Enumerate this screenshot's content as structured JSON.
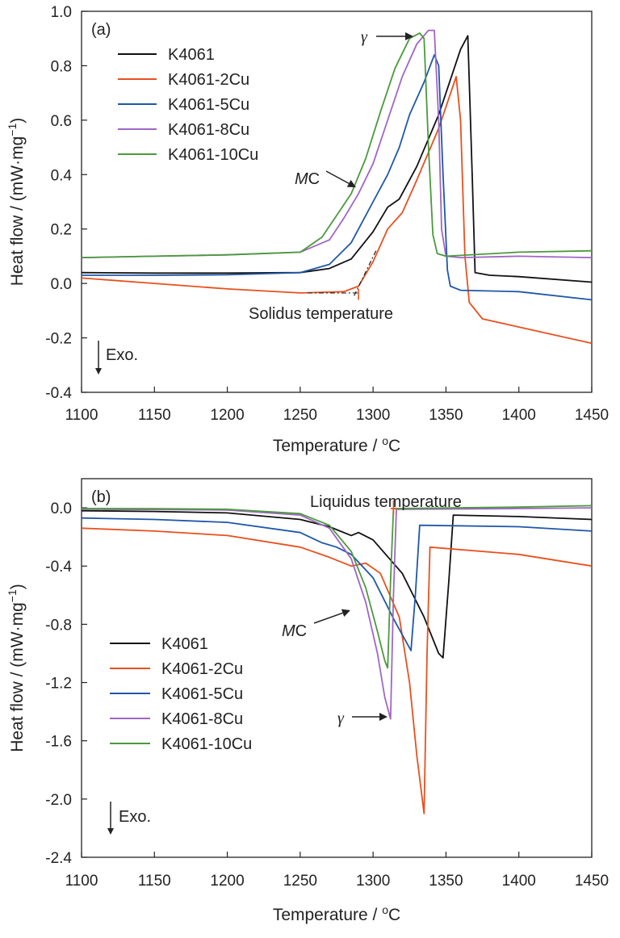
{
  "chart_data": [
    {
      "type": "line",
      "panel_label": "(a)",
      "xlabel_text": "Temperature / ",
      "xlabel_unit": "oC",
      "ylabel_text": "Heat flow / (mW·mg",
      "ylabel_sup": "−1",
      "ylabel_close": ")",
      "xlim": [
        1100,
        1450
      ],
      "ylim": [
        -0.4,
        1.0
      ],
      "x_ticks": [
        1100,
        1150,
        1200,
        1250,
        1300,
        1350,
        1400,
        1450
      ],
      "y_ticks": [
        -0.4,
        -0.2,
        0.0,
        0.2,
        0.4,
        0.6,
        0.8,
        1.0
      ],
      "y_tick_labels": [
        "-0.4",
        "-0.2",
        "0.0",
        "0.2",
        "0.4",
        "0.6",
        "0.8",
        "1.0"
      ],
      "exo_label": "Exo.",
      "legend_placement": "upper-left",
      "annotations": {
        "gamma": "γ",
        "mc_italic": "M",
        "mc_rest": "C",
        "solidus": "Solidus temperature"
      },
      "series": [
        {
          "name": "K4061",
          "color": "#111111",
          "x": [
            1100,
            1150,
            1200,
            1250,
            1270,
            1285,
            1300,
            1310,
            1318,
            1330,
            1345,
            1360,
            1365,
            1368,
            1370,
            1380,
            1400,
            1450
          ],
          "y": [
            0.04,
            0.038,
            0.038,
            0.04,
            0.055,
            0.09,
            0.19,
            0.28,
            0.31,
            0.43,
            0.62,
            0.86,
            0.91,
            0.4,
            0.04,
            0.03,
            0.025,
            0.005
          ]
        },
        {
          "name": "K4061-2Cu",
          "color": "#e8501e",
          "x": [
            1100,
            1150,
            1200,
            1250,
            1280,
            1290,
            1300,
            1310,
            1320,
            1330,
            1345,
            1357,
            1360,
            1363,
            1366,
            1375,
            1400,
            1450
          ],
          "y": [
            0.02,
            0.0,
            -0.02,
            -0.035,
            -0.03,
            -0.01,
            0.08,
            0.2,
            0.26,
            0.38,
            0.57,
            0.76,
            0.6,
            0.1,
            -0.07,
            -0.13,
            -0.16,
            -0.22
          ]
        },
        {
          "name": "K4061-5Cu",
          "color": "#1f57a8",
          "x": [
            1100,
            1150,
            1200,
            1250,
            1270,
            1285,
            1300,
            1310,
            1318,
            1325,
            1335,
            1342,
            1345,
            1348,
            1351,
            1353,
            1360,
            1400,
            1450
          ],
          "y": [
            0.03,
            0.03,
            0.032,
            0.04,
            0.07,
            0.15,
            0.3,
            0.4,
            0.5,
            0.62,
            0.74,
            0.84,
            0.8,
            0.4,
            0.05,
            -0.01,
            -0.025,
            -0.03,
            -0.06
          ]
        },
        {
          "name": "K4061-8Cu",
          "color": "#a066c4",
          "x": [
            1100,
            1150,
            1200,
            1250,
            1270,
            1280,
            1290,
            1300,
            1310,
            1320,
            1330,
            1338,
            1342,
            1345,
            1347,
            1350,
            1360,
            1400,
            1450
          ],
          "y": [
            0.095,
            0.1,
            0.105,
            0.115,
            0.16,
            0.24,
            0.33,
            0.44,
            0.6,
            0.76,
            0.88,
            0.93,
            0.93,
            0.6,
            0.2,
            0.1,
            0.095,
            0.1,
            0.095
          ]
        },
        {
          "name": "K4061-10Cu",
          "color": "#4b9a3c",
          "x": [
            1100,
            1150,
            1200,
            1250,
            1265,
            1275,
            1285,
            1295,
            1305,
            1315,
            1325,
            1332,
            1335,
            1338,
            1341,
            1344,
            1350,
            1400,
            1450
          ],
          "y": [
            0.095,
            0.1,
            0.105,
            0.115,
            0.17,
            0.25,
            0.33,
            0.46,
            0.63,
            0.79,
            0.9,
            0.92,
            0.9,
            0.5,
            0.18,
            0.11,
            0.1,
            0.115,
            0.12
          ]
        }
      ]
    },
    {
      "type": "line",
      "panel_label": "(b)",
      "xlabel_text": "Temperature / ",
      "xlabel_unit": "oC",
      "ylabel_text": "Heat flow / (mW·mg",
      "ylabel_sup": "−1",
      "ylabel_close": ")",
      "xlim": [
        1100,
        1450
      ],
      "ylim": [
        -2.4,
        0.2
      ],
      "x_ticks": [
        1100,
        1150,
        1200,
        1250,
        1300,
        1350,
        1400,
        1450
      ],
      "y_ticks": [
        -2.4,
        -2.0,
        -1.6,
        -1.2,
        -0.8,
        -0.4,
        0.0
      ],
      "y_tick_labels": [
        "-2.4",
        "-2.0",
        "-1.6",
        "-1.2",
        "-0.8",
        "-0.4",
        "0.0"
      ],
      "exo_label": "Exo.",
      "legend_placement": "middle-left",
      "annotations": {
        "gamma": "γ",
        "mc_italic": "M",
        "mc_rest": "C",
        "liquidus": "Liquidus temperature"
      },
      "series": [
        {
          "name": "K4061",
          "color": "#111111",
          "x": [
            1100,
            1150,
            1200,
            1250,
            1270,
            1285,
            1290,
            1300,
            1320,
            1335,
            1345,
            1348,
            1352,
            1355,
            1400,
            1450
          ],
          "y": [
            -0.02,
            -0.025,
            -0.035,
            -0.08,
            -0.13,
            -0.19,
            -0.17,
            -0.22,
            -0.45,
            -0.75,
            -1.0,
            -1.03,
            -0.5,
            -0.05,
            -0.06,
            -0.08
          ]
        },
        {
          "name": "K4061-2Cu",
          "color": "#e8501e",
          "x": [
            1100,
            1150,
            1200,
            1250,
            1270,
            1285,
            1295,
            1305,
            1318,
            1325,
            1330,
            1335,
            1337,
            1339,
            1400,
            1450
          ],
          "y": [
            -0.14,
            -0.16,
            -0.19,
            -0.27,
            -0.34,
            -0.4,
            -0.38,
            -0.45,
            -0.75,
            -1.2,
            -1.7,
            -2.1,
            -1.0,
            -0.27,
            -0.32,
            -0.4
          ]
        },
        {
          "name": "K4061-5Cu",
          "color": "#1f57a8",
          "x": [
            1100,
            1150,
            1200,
            1250,
            1265,
            1275,
            1285,
            1300,
            1315,
            1326,
            1329,
            1332,
            1400,
            1450
          ],
          "y": [
            -0.07,
            -0.08,
            -0.1,
            -0.17,
            -0.24,
            -0.27,
            -0.32,
            -0.48,
            -0.78,
            -0.98,
            -0.6,
            -0.12,
            -0.13,
            -0.16
          ]
        },
        {
          "name": "K4061-8Cu",
          "color": "#a066c4",
          "x": [
            1100,
            1150,
            1200,
            1250,
            1270,
            1285,
            1295,
            1303,
            1308,
            1312,
            1314,
            1316,
            1400,
            1450
          ],
          "y": [
            -0.01,
            -0.012,
            -0.015,
            -0.05,
            -0.14,
            -0.35,
            -0.65,
            -1.0,
            -1.3,
            -1.45,
            -0.6,
            -0.01,
            -0.005,
            0.0
          ]
        },
        {
          "name": "K4061-10Cu",
          "color": "#4b9a3c",
          "x": [
            1100,
            1150,
            1200,
            1250,
            1270,
            1285,
            1295,
            1303,
            1308,
            1310,
            1312,
            1314,
            1400,
            1450
          ],
          "y": [
            -0.005,
            -0.006,
            -0.01,
            -0.04,
            -0.12,
            -0.3,
            -0.55,
            -0.85,
            -1.05,
            -1.1,
            -0.5,
            -0.005,
            0.005,
            0.015
          ]
        }
      ]
    }
  ]
}
